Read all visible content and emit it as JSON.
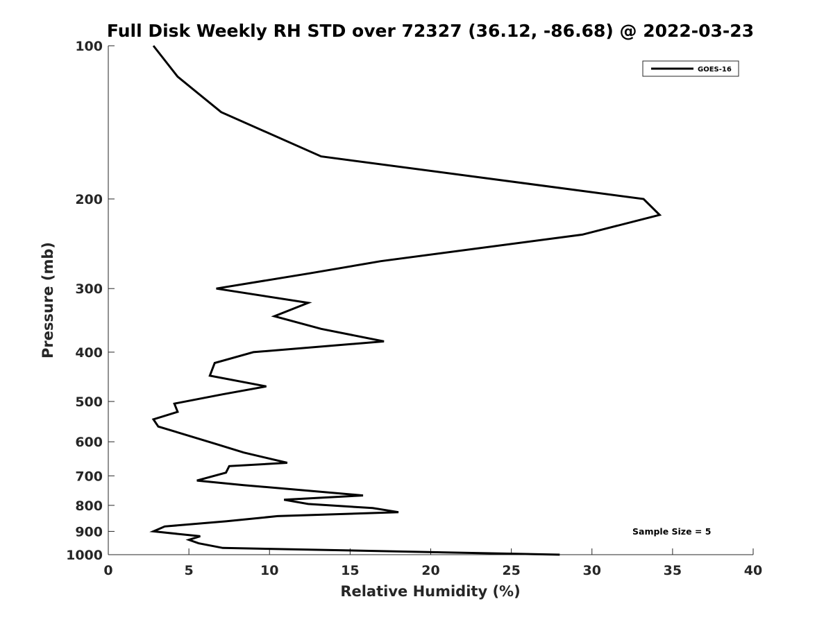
{
  "chart_data": {
    "type": "line",
    "title": "Full Disk Weekly RH STD over 72327 (36.12, -86.68) @ 2022-03-23",
    "xlabel": "Relative Humidity (%)",
    "ylabel": "Pressure (mb)",
    "xlim": [
      0,
      40
    ],
    "ylim": [
      100,
      1000
    ],
    "y_scale": "log",
    "y_reversed": true,
    "grid": false,
    "legend_position": "top-right",
    "x_ticks": [
      0,
      5,
      10,
      15,
      20,
      25,
      30,
      35,
      40
    ],
    "y_ticks": [
      100,
      200,
      300,
      400,
      500,
      600,
      700,
      800,
      900,
      1000
    ],
    "annotation": "Sample Size = 5",
    "series": [
      {
        "name": "GOES-16",
        "color": "#000000",
        "points": [
          [
            2.8,
            100
          ],
          [
            4.3,
            115
          ],
          [
            7.0,
            135
          ],
          [
            13.2,
            165
          ],
          [
            33.2,
            200
          ],
          [
            34.2,
            215
          ],
          [
            29.4,
            235
          ],
          [
            16.9,
            265
          ],
          [
            12.5,
            280
          ],
          [
            6.7,
            300
          ],
          [
            12.4,
            320
          ],
          [
            10.3,
            340
          ],
          [
            13.2,
            360
          ],
          [
            17.1,
            381
          ],
          [
            9.0,
            400
          ],
          [
            6.6,
            420
          ],
          [
            6.3,
            445
          ],
          [
            9.8,
            467
          ],
          [
            7.1,
            484
          ],
          [
            4.1,
            505
          ],
          [
            4.3,
            524
          ],
          [
            2.8,
            542
          ],
          [
            3.1,
            560
          ],
          [
            6.6,
            605
          ],
          [
            8.4,
            630
          ],
          [
            11.1,
            660
          ],
          [
            7.5,
            670
          ],
          [
            7.3,
            690
          ],
          [
            5.5,
            715
          ],
          [
            8.4,
            730
          ],
          [
            15.8,
            765
          ],
          [
            10.9,
            780
          ],
          [
            12.4,
            795
          ],
          [
            16.4,
            810
          ],
          [
            18.0,
            825
          ],
          [
            10.5,
            840
          ],
          [
            7.3,
            860
          ],
          [
            3.5,
            880
          ],
          [
            2.8,
            900
          ],
          [
            5.7,
            920
          ],
          [
            5.0,
            935
          ],
          [
            5.6,
            950
          ],
          [
            7.1,
            970
          ],
          [
            28.0,
            1000
          ]
        ]
      }
    ]
  }
}
